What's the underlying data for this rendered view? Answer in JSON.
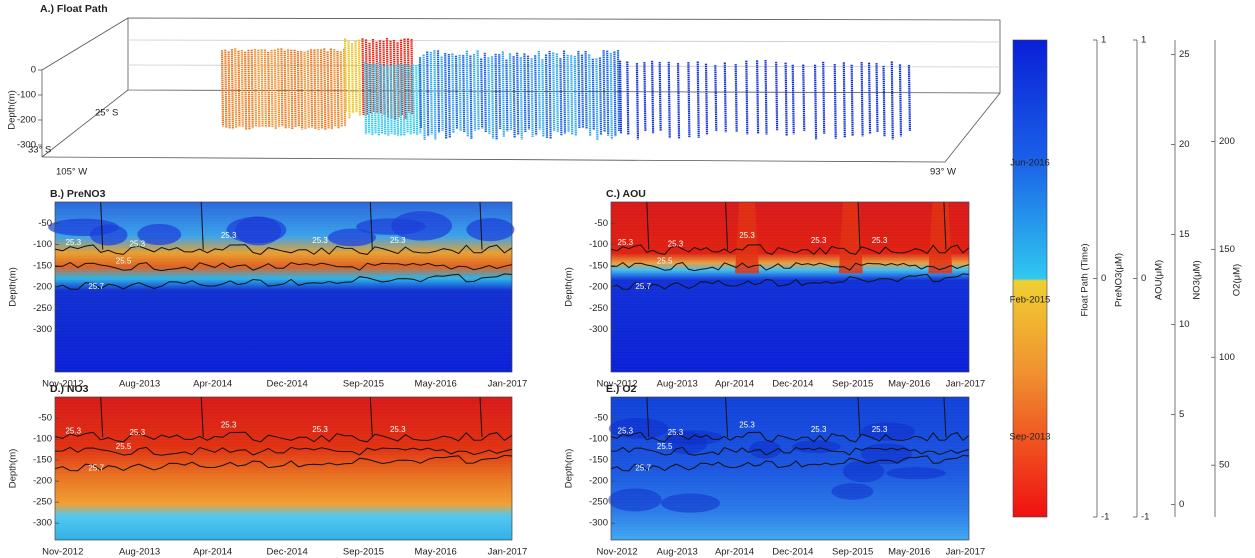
{
  "figure": {
    "panel_a": {
      "title": "A.) Float Path",
      "ylabel": "Depth(m)",
      "zlim": [
        -340,
        40
      ],
      "zticks": [
        0,
        -100,
        -200,
        -300
      ],
      "lat_labels": [
        "25° S",
        "33° S"
      ],
      "lon_labels": [
        "105° W",
        "93° W"
      ]
    },
    "panels": [
      {
        "title": "B.) PreNO3",
        "ylabel": "Depth(m)",
        "ylim": [
          -400,
          0
        ],
        "yticks": [
          -50,
          -100,
          -150,
          -200,
          -250,
          -300
        ],
        "xticks": [
          "Nov-2012",
          "Aug-2013",
          "Apr-2014",
          "Dec-2014",
          "Sep-2015",
          "May-2016",
          "Jan-2017"
        ],
        "contour_labels": [
          "25.3",
          "25.3",
          "25.3",
          "25.3",
          "25.3",
          "25.5",
          "25.7"
        ]
      },
      {
        "title": "C.) AOU",
        "ylabel": "Depth(m)",
        "ylim": [
          -400,
          0
        ],
        "yticks": [
          -50,
          -100,
          -150,
          -200,
          -250,
          -300
        ],
        "xticks": [
          "Nov-2012",
          "Aug-2013",
          "Apr-2014",
          "Dec-2014",
          "Sep-2015",
          "May-2016",
          "Jan-2017"
        ],
        "contour_labels": [
          "25.3",
          "25.3",
          "25.3",
          "25.3",
          "25.3",
          "25.5",
          "25.7"
        ]
      },
      {
        "title": "D.) NO3",
        "ylabel": "Depth(m)",
        "ylim": [
          -340,
          0
        ],
        "yticks": [
          -50,
          -100,
          -150,
          -200,
          -250,
          -300
        ],
        "xticks": [
          "Nov-2012",
          "Aug-2013",
          "Apr-2014",
          "Dec-2014",
          "Sep-2015",
          "May-2016",
          "Jan-2017"
        ],
        "contour_labels": [
          "25.3",
          "25.3",
          "25.3",
          "25.3",
          "25.3",
          "25.5",
          "25.7"
        ]
      },
      {
        "title": "E.) O2",
        "ylabel": "Depth(m)",
        "ylim": [
          -340,
          0
        ],
        "yticks": [
          -50,
          -100,
          -150,
          -200,
          -250,
          -300
        ],
        "xticks": [
          "Nov-2012",
          "Aug-2013",
          "Apr-2014",
          "Dec-2014",
          "Sep-2015",
          "May-2016",
          "Jan-2017"
        ],
        "contour_labels": [
          "25.3",
          "25.3",
          "25.3",
          "25.3",
          "25.3",
          "25.5",
          "25.7"
        ]
      }
    ],
    "colorbar": {
      "label": "Float Path (Time)",
      "ticks": [
        "Jun-2016",
        "Feb-2015",
        "Sep-2013"
      ]
    },
    "axes": [
      {
        "label": "PreNO3(μM)",
        "ylim": [
          -1,
          1
        ],
        "yticks": [
          -1,
          0,
          1
        ]
      },
      {
        "label": "AOU(μM)",
        "ylim": [
          -1,
          1
        ],
        "yticks": [
          -1,
          0,
          1
        ]
      },
      {
        "label": "NO3(μM)",
        "ylim": [
          -0.7,
          25.8
        ],
        "yticks": [
          0,
          5,
          10,
          15,
          20,
          25
        ]
      },
      {
        "label": "O2(μM)",
        "ylim": [
          26,
          247
        ],
        "yticks": [
          50,
          100,
          150,
          200
        ]
      }
    ]
  }
}
